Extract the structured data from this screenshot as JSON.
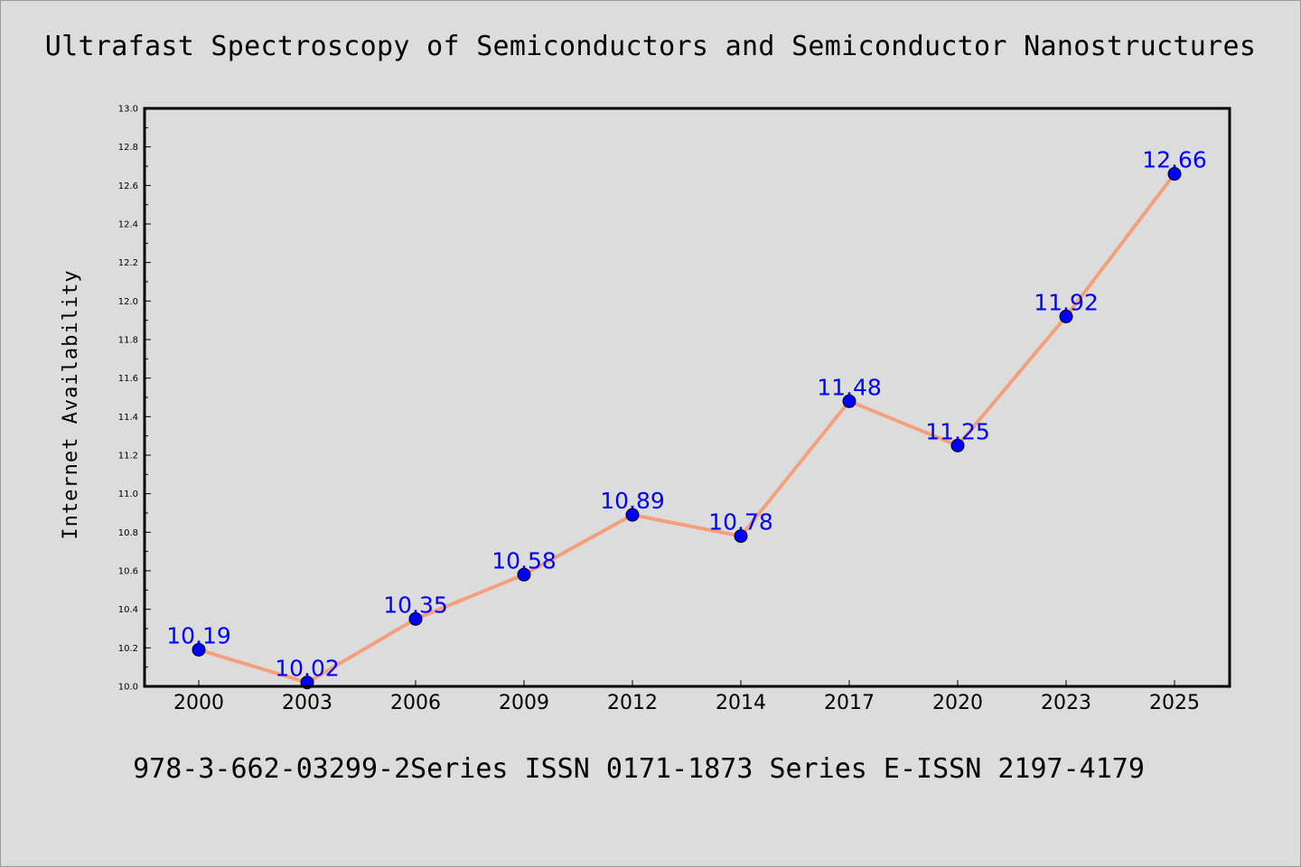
{
  "page": {
    "title": "Ultrafast Spectroscopy of Semiconductors and Semiconductor Nanostructures",
    "footer": "978-3-662-03299-2Series ISSN 0171-1873 Series E-ISSN 2197-4179"
  },
  "chart_data": {
    "type": "line",
    "title": "Ultrafast Spectroscopy of Semiconductors and Semiconductor Nanostructures",
    "xlabel": "",
    "ylabel": "Internet Availability",
    "categories": [
      "2000",
      "2003",
      "2006",
      "2009",
      "2012",
      "2014",
      "2017",
      "2020",
      "2023",
      "2025"
    ],
    "series": [
      {
        "values": [
          10.19,
          10.02,
          10.35,
          10.58,
          10.89,
          10.78,
          11.48,
          11.25,
          11.92,
          12.66
        ],
        "line_color": "#f4a07e",
        "marker_color": "#0000ff"
      }
    ],
    "data_labels": [
      "10.19",
      "10.02",
      "10.35",
      "10.58",
      "10.89",
      "10.78",
      "11.48",
      "11.25",
      "11.92",
      "12.66"
    ],
    "ylim": [
      10.0,
      13.0
    ],
    "yticks": [
      "10.0",
      "10.2",
      "10.4",
      "10.6",
      "10.8",
      "11.0",
      "11.2",
      "11.4",
      "11.6",
      "11.8",
      "12.0",
      "12.2",
      "12.4",
      "12.6",
      "12.8",
      "13.0"
    ],
    "grid": false,
    "legend": "none"
  }
}
